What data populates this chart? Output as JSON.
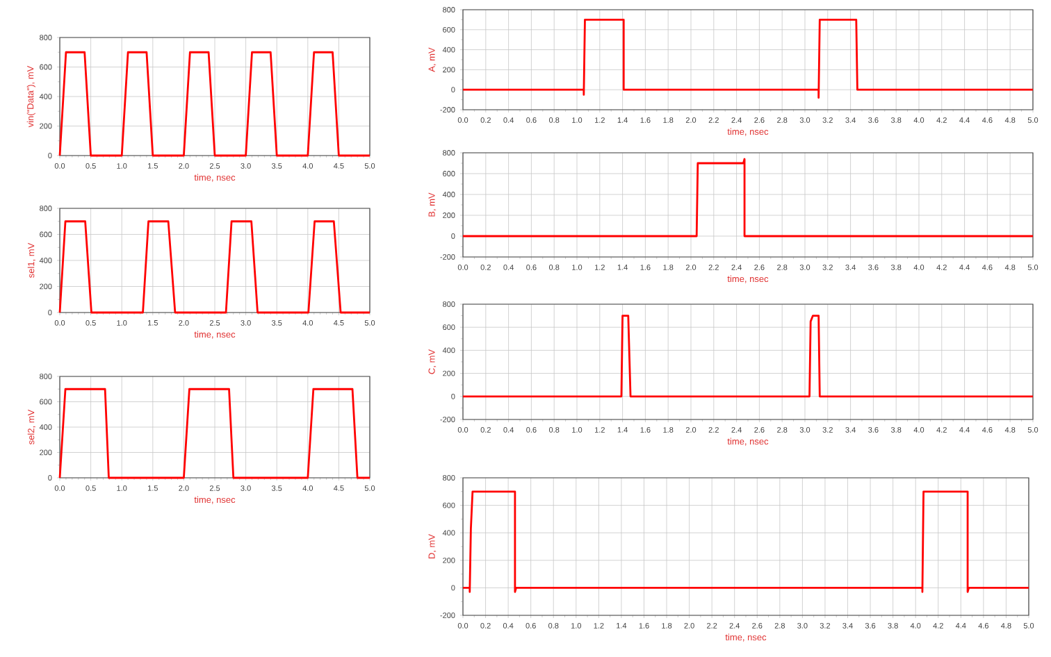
{
  "chart_data": [
    {
      "type": "line",
      "xlabel": "time, nsec",
      "ylabel": "vin(\"Data\"), mV",
      "color": "#ff0000",
      "grid": true,
      "x": [
        0,
        0.1,
        0.4,
        0.5,
        1.0,
        1.1,
        1.4,
        1.5,
        2.0,
        2.1,
        2.4,
        2.5,
        3.0,
        3.1,
        3.4,
        3.5,
        4.0,
        4.1,
        4.4,
        4.5,
        5.0
      ],
      "values": [
        0,
        700,
        700,
        0,
        0,
        700,
        700,
        0,
        0,
        700,
        700,
        0,
        0,
        700,
        700,
        0,
        0,
        700,
        700,
        0,
        0
      ],
      "xlim": [
        0,
        5
      ],
      "ylim": [
        0,
        800
      ],
      "xticks": [
        {
          "value": 0,
          "label": "0.0"
        },
        {
          "value": 0.5,
          "label": "0.5"
        },
        {
          "value": 1,
          "label": "1.0"
        },
        {
          "value": 1.5,
          "label": "1.5"
        },
        {
          "value": 2,
          "label": "2.0"
        },
        {
          "value": 2.5,
          "label": "2.5"
        },
        {
          "value": 3,
          "label": "3.0"
        },
        {
          "value": 3.5,
          "label": "3.5"
        },
        {
          "value": 4,
          "label": "4.0"
        },
        {
          "value": 4.5,
          "label": "4.5"
        },
        {
          "value": 5,
          "label": "5.0"
        }
      ],
      "yticks": [
        0,
        200,
        400,
        600,
        800
      ]
    },
    {
      "type": "line",
      "xlabel": "time, nsec",
      "ylabel": "sel1, mV",
      "color": "#ff0000",
      "grid": true,
      "x": [
        0,
        0.09,
        0.41,
        0.51,
        1.34,
        1.43,
        1.75,
        1.86,
        2.68,
        2.77,
        3.09,
        3.19,
        4.01,
        4.11,
        4.42,
        4.53,
        5.0
      ],
      "values": [
        0,
        700,
        700,
        0,
        0,
        700,
        700,
        0,
        0,
        700,
        700,
        0,
        0,
        700,
        700,
        0,
        0
      ],
      "xlim": [
        0,
        5
      ],
      "ylim": [
        0,
        800
      ],
      "xticks": [
        {
          "value": 0,
          "label": "0.0"
        },
        {
          "value": 0.5,
          "label": "0.5"
        },
        {
          "value": 1,
          "label": "1.0"
        },
        {
          "value": 1.5,
          "label": "1.5"
        },
        {
          "value": 2,
          "label": "2.0"
        },
        {
          "value": 2.5,
          "label": "2.5"
        },
        {
          "value": 3,
          "label": "3.0"
        },
        {
          "value": 3.5,
          "label": "3.5"
        },
        {
          "value": 4,
          "label": "4.0"
        },
        {
          "value": 4.5,
          "label": "4.5"
        },
        {
          "value": 5,
          "label": "5.0"
        }
      ],
      "yticks": [
        0,
        200,
        400,
        600,
        800
      ]
    },
    {
      "type": "line",
      "xlabel": "time, nsec",
      "ylabel": "sel2, mV",
      "color": "#ff0000",
      "grid": true,
      "x": [
        0,
        0.09,
        0.73,
        0.79,
        2.0,
        2.09,
        2.73,
        2.8,
        4.0,
        4.09,
        4.72,
        4.8,
        5.0
      ],
      "values": [
        0,
        700,
        700,
        0,
        0,
        700,
        700,
        0,
        0,
        700,
        700,
        0,
        0
      ],
      "xlim": [
        0,
        5
      ],
      "ylim": [
        0,
        800
      ],
      "xticks": [
        {
          "value": 0,
          "label": "0.0"
        },
        {
          "value": 0.5,
          "label": "0.5"
        },
        {
          "value": 1,
          "label": "1.0"
        },
        {
          "value": 1.5,
          "label": "1.5"
        },
        {
          "value": 2,
          "label": "2.0"
        },
        {
          "value": 2.5,
          "label": "2.5"
        },
        {
          "value": 3,
          "label": "3.0"
        },
        {
          "value": 3.5,
          "label": "3.5"
        },
        {
          "value": 4,
          "label": "4.0"
        },
        {
          "value": 4.5,
          "label": "4.5"
        },
        {
          "value": 5,
          "label": "5.0"
        }
      ],
      "yticks": [
        0,
        200,
        400,
        600,
        800
      ]
    },
    {
      "type": "line",
      "xlabel": "time, nsec",
      "ylabel": "A, mV",
      "color": "#ff0000",
      "grid": true,
      "x": [
        0,
        1.06,
        1.06,
        1.07,
        1.41,
        1.41,
        3.12,
        3.12,
        3.13,
        3.45,
        3.46,
        5.0
      ],
      "values": [
        0,
        0,
        -50,
        700,
        700,
        0,
        0,
        -80,
        700,
        700,
        0,
        0
      ],
      "xlim": [
        0,
        5
      ],
      "ylim": [
        -200,
        800
      ],
      "xticks": [
        {
          "value": 0,
          "label": "0.0"
        },
        {
          "value": 0.2,
          "label": "0.2"
        },
        {
          "value": 0.4,
          "label": "0.4"
        },
        {
          "value": 0.6,
          "label": "0.6"
        },
        {
          "value": 0.8,
          "label": "0.8"
        },
        {
          "value": 1,
          "label": "1.0"
        },
        {
          "value": 1.2,
          "label": "1.2"
        },
        {
          "value": 1.4,
          "label": "1.4"
        },
        {
          "value": 1.6,
          "label": "1.6"
        },
        {
          "value": 1.8,
          "label": "1.8"
        },
        {
          "value": 2,
          "label": "2.0"
        },
        {
          "value": 2.2,
          "label": "2.2"
        },
        {
          "value": 2.4,
          "label": "2.4"
        },
        {
          "value": 2.6,
          "label": "2.6"
        },
        {
          "value": 2.8,
          "label": "2.8"
        },
        {
          "value": 3,
          "label": "3.0"
        },
        {
          "value": 3.2,
          "label": "3.2"
        },
        {
          "value": 3.4,
          "label": "3.4"
        },
        {
          "value": 3.6,
          "label": "3.6"
        },
        {
          "value": 3.8,
          "label": "3.8"
        },
        {
          "value": 4,
          "label": "4.0"
        },
        {
          "value": 4.2,
          "label": "4.2"
        },
        {
          "value": 4.4,
          "label": "4.4"
        },
        {
          "value": 4.6,
          "label": "4.6"
        },
        {
          "value": 4.8,
          "label": "4.8"
        },
        {
          "value": 5,
          "label": "5.0"
        }
      ],
      "yticks": [
        -200,
        0,
        200,
        400,
        600,
        800
      ]
    },
    {
      "type": "line",
      "xlabel": "time, nsec",
      "ylabel": "B, mV",
      "color": "#ff0000",
      "grid": true,
      "x": [
        0,
        2.05,
        2.06,
        2.46,
        2.47,
        2.47,
        5.0
      ],
      "values": [
        0,
        0,
        700,
        700,
        740,
        0,
        0
      ],
      "xlim": [
        0,
        5
      ],
      "ylim": [
        -200,
        800
      ],
      "xticks": [
        {
          "value": 0,
          "label": "0.0"
        },
        {
          "value": 0.2,
          "label": "0.2"
        },
        {
          "value": 0.4,
          "label": "0.4"
        },
        {
          "value": 0.6,
          "label": "0.6"
        },
        {
          "value": 0.8,
          "label": "0.8"
        },
        {
          "value": 1,
          "label": "1.0"
        },
        {
          "value": 1.2,
          "label": "1.2"
        },
        {
          "value": 1.4,
          "label": "1.4"
        },
        {
          "value": 1.6,
          "label": "1.6"
        },
        {
          "value": 1.8,
          "label": "1.8"
        },
        {
          "value": 2,
          "label": "2.0"
        },
        {
          "value": 2.2,
          "label": "2.2"
        },
        {
          "value": 2.4,
          "label": "2.4"
        },
        {
          "value": 2.6,
          "label": "2.6"
        },
        {
          "value": 2.8,
          "label": "2.8"
        },
        {
          "value": 3,
          "label": "3.0"
        },
        {
          "value": 3.2,
          "label": "3.2"
        },
        {
          "value": 3.4,
          "label": "3.4"
        },
        {
          "value": 3.6,
          "label": "3.6"
        },
        {
          "value": 3.8,
          "label": "3.8"
        },
        {
          "value": 4,
          "label": "4.0"
        },
        {
          "value": 4.2,
          "label": "4.2"
        },
        {
          "value": 4.4,
          "label": "4.4"
        },
        {
          "value": 4.6,
          "label": "4.6"
        },
        {
          "value": 4.8,
          "label": "4.8"
        },
        {
          "value": 5,
          "label": "5.0"
        }
      ],
      "yticks": [
        -200,
        0,
        200,
        400,
        600,
        800
      ]
    },
    {
      "type": "line",
      "xlabel": "time, nsec",
      "ylabel": "C, mV",
      "color": "#ff0000",
      "grid": true,
      "x": [
        0,
        1.39,
        1.4,
        1.45,
        1.47,
        3.04,
        3.05,
        3.07,
        3.12,
        3.13,
        5.0
      ],
      "values": [
        0,
        0,
        700,
        700,
        0,
        0,
        650,
        700,
        700,
        0,
        0
      ],
      "xlim": [
        0,
        5
      ],
      "ylim": [
        -200,
        800
      ],
      "xticks": [
        {
          "value": 0,
          "label": "0.0"
        },
        {
          "value": 0.2,
          "label": "0.2"
        },
        {
          "value": 0.4,
          "label": "0.4"
        },
        {
          "value": 0.6,
          "label": "0.6"
        },
        {
          "value": 0.8,
          "label": "0.8"
        },
        {
          "value": 1,
          "label": "1.0"
        },
        {
          "value": 1.2,
          "label": "1.2"
        },
        {
          "value": 1.4,
          "label": "1.4"
        },
        {
          "value": 1.6,
          "label": "1.6"
        },
        {
          "value": 1.8,
          "label": "1.8"
        },
        {
          "value": 2,
          "label": "2.0"
        },
        {
          "value": 2.2,
          "label": "2.2"
        },
        {
          "value": 2.4,
          "label": "2.4"
        },
        {
          "value": 2.6,
          "label": "2.6"
        },
        {
          "value": 2.8,
          "label": "2.8"
        },
        {
          "value": 3,
          "label": "3.0"
        },
        {
          "value": 3.2,
          "label": "3.2"
        },
        {
          "value": 3.4,
          "label": "3.4"
        },
        {
          "value": 3.6,
          "label": "3.6"
        },
        {
          "value": 3.8,
          "label": "3.8"
        },
        {
          "value": 4,
          "label": "4.0"
        },
        {
          "value": 4.2,
          "label": "4.2"
        },
        {
          "value": 4.4,
          "label": "4.4"
        },
        {
          "value": 4.6,
          "label": "4.6"
        },
        {
          "value": 4.8,
          "label": "4.8"
        },
        {
          "value": 5,
          "label": "5.0"
        }
      ],
      "yticks": [
        -200,
        0,
        200,
        400,
        600,
        800
      ]
    },
    {
      "type": "line",
      "xlabel": "time, nsec",
      "ylabel": "D, mV",
      "color": "#ff0000",
      "grid": true,
      "x": [
        0,
        0.06,
        0.06,
        0.07,
        0.085,
        0.46,
        0.46,
        0.47,
        4.06,
        4.06,
        4.07,
        4.46,
        4.46,
        4.47,
        5.0
      ],
      "values": [
        0,
        0,
        -30,
        430,
        700,
        700,
        -30,
        0,
        0,
        -30,
        700,
        700,
        -30,
        0,
        0
      ],
      "xlim": [
        0,
        5
      ],
      "ylim": [
        -200,
        800
      ],
      "xticks": [
        {
          "value": 0,
          "label": "0.0"
        },
        {
          "value": 0.2,
          "label": "0.2"
        },
        {
          "value": 0.4,
          "label": "0.4"
        },
        {
          "value": 0.6,
          "label": "0.6"
        },
        {
          "value": 0.8,
          "label": "0.8"
        },
        {
          "value": 1,
          "label": "1.0"
        },
        {
          "value": 1.2,
          "label": "1.2"
        },
        {
          "value": 1.4,
          "label": "1.4"
        },
        {
          "value": 1.6,
          "label": "1.6"
        },
        {
          "value": 1.8,
          "label": "1.8"
        },
        {
          "value": 2,
          "label": "2.0"
        },
        {
          "value": 2.2,
          "label": "2.2"
        },
        {
          "value": 2.4,
          "label": "2.4"
        },
        {
          "value": 2.6,
          "label": "2.6"
        },
        {
          "value": 2.8,
          "label": "2.8"
        },
        {
          "value": 3,
          "label": "3.0"
        },
        {
          "value": 3.2,
          "label": "3.2"
        },
        {
          "value": 3.4,
          "label": "3.4"
        },
        {
          "value": 3.6,
          "label": "3.6"
        },
        {
          "value": 3.8,
          "label": "3.8"
        },
        {
          "value": 4,
          "label": "4.0"
        },
        {
          "value": 4.2,
          "label": "4.2"
        },
        {
          "value": 4.4,
          "label": "4.4"
        },
        {
          "value": 4.6,
          "label": "4.6"
        },
        {
          "value": 4.8,
          "label": "4.8"
        },
        {
          "value": 5,
          "label": "5.0"
        }
      ],
      "yticks": [
        -200,
        0,
        200,
        400,
        600,
        800
      ]
    }
  ]
}
